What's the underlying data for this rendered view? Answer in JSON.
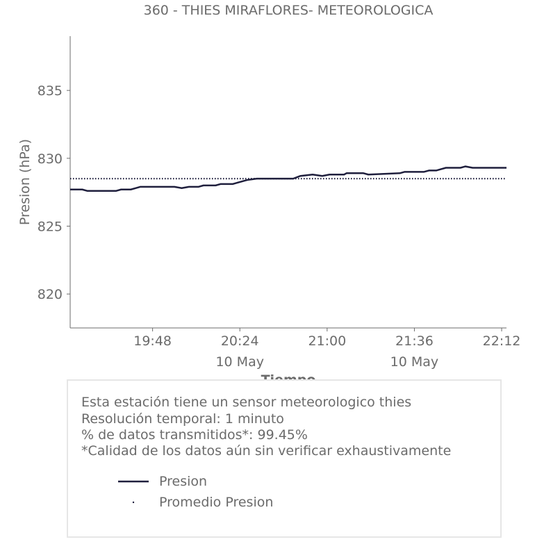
{
  "chart_data": {
    "type": "line",
    "title": "360 - THIES MIRAFLORES- METEOROLOGICA",
    "xlabel": "Tiempo",
    "ylabel": "Presion (hPa)",
    "ylim": [
      817.5,
      839
    ],
    "yticks": [
      820,
      825,
      830,
      835
    ],
    "xlim": [
      "19:14",
      "22:14"
    ],
    "xticks": [
      {
        "t": "19:48",
        "label": "19:48",
        "sub": ""
      },
      {
        "t": "20:24",
        "label": "20:24",
        "sub": "10 May"
      },
      {
        "t": "21:00",
        "label": "21:00",
        "sub": ""
      },
      {
        "t": "21:36",
        "label": "21:36",
        "sub": "10 May"
      },
      {
        "t": "22:12",
        "label": "22:12",
        "sub": ""
      }
    ],
    "grid": false,
    "series": [
      {
        "name": "Presion",
        "color": "#1f1f3d",
        "style": "solid",
        "points": [
          [
            "19:14",
            827.7
          ],
          [
            "19:19",
            827.7
          ],
          [
            "19:21",
            827.6
          ],
          [
            "19:33",
            827.6
          ],
          [
            "19:35",
            827.7
          ],
          [
            "19:39",
            827.7
          ],
          [
            "19:41",
            827.8
          ],
          [
            "19:43",
            827.9
          ],
          [
            "19:57",
            827.9
          ],
          [
            "20:00",
            827.8
          ],
          [
            "20:03",
            827.9
          ],
          [
            "20:07",
            827.9
          ],
          [
            "20:09",
            828.0
          ],
          [
            "20:14",
            828.0
          ],
          [
            "20:16",
            828.1
          ],
          [
            "20:21",
            828.1
          ],
          [
            "20:23",
            828.2
          ],
          [
            "20:27",
            828.4
          ],
          [
            "20:31",
            828.5
          ],
          [
            "20:37",
            828.5
          ],
          [
            "20:46",
            828.5
          ],
          [
            "20:49",
            828.7
          ],
          [
            "20:54",
            828.8
          ],
          [
            "20:58",
            828.7
          ],
          [
            "21:01",
            828.8
          ],
          [
            "21:07",
            828.8
          ],
          [
            "21:08",
            828.9
          ],
          [
            "21:15",
            828.9
          ],
          [
            "21:17",
            828.8
          ],
          [
            "21:30",
            828.9
          ],
          [
            "21:32",
            829.0
          ],
          [
            "21:40",
            829.0
          ],
          [
            "21:42",
            829.1
          ],
          [
            "21:45",
            829.1
          ],
          [
            "21:47",
            829.2
          ],
          [
            "21:49",
            829.3
          ],
          [
            "21:55",
            829.3
          ],
          [
            "21:57",
            829.4
          ],
          [
            "22:00",
            829.3
          ],
          [
            "22:03",
            829.3
          ],
          [
            "22:14",
            829.3
          ]
        ]
      },
      {
        "name": "Promedio Presion",
        "color": "#1f1f3d",
        "style": "dotted",
        "points": [
          [
            "19:14",
            828.5
          ],
          [
            "22:14",
            828.5
          ]
        ]
      }
    ]
  },
  "info": {
    "lines": [
      "Esta estación tiene un sensor meteorologico thies",
      "Resolución temporal: 1 minuto",
      "% de datos transmitidos*: 99.45%",
      "*Calidad de los datos aún sin verificar exhaustivamente"
    ],
    "legend": [
      {
        "label": "Presion",
        "marker": "line"
      },
      {
        "label": "Promedio Presion",
        "marker": "dot"
      }
    ]
  }
}
